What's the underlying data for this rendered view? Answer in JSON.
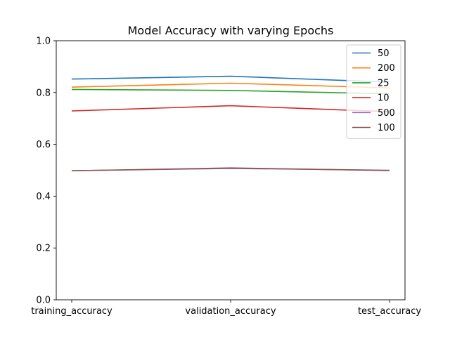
{
  "chart_data": {
    "type": "line",
    "title": "Model Accuracy with varying Epochs",
    "xlabel": "",
    "ylabel": "",
    "categories": [
      "training_accuracy",
      "validation_accuracy",
      "test_accuracy"
    ],
    "ylim": [
      0.0,
      1.0
    ],
    "yticks": [
      "0.0",
      "0.2",
      "0.4",
      "0.6",
      "0.8",
      "1.0"
    ],
    "grid": false,
    "legend_position": "top-right",
    "series": [
      {
        "name": "50",
        "color": "#1f77b4",
        "values": [
          0.852,
          0.863,
          0.84
        ]
      },
      {
        "name": "200",
        "color": "#ff7f0e",
        "values": [
          0.821,
          0.836,
          0.818
        ]
      },
      {
        "name": "25",
        "color": "#2ca02c",
        "values": [
          0.812,
          0.808,
          0.795
        ]
      },
      {
        "name": "10",
        "color": "#d62728",
        "values": [
          0.729,
          0.749,
          0.726
        ]
      },
      {
        "name": "500",
        "color": "#9467bd",
        "values": [
          0.498,
          0.507,
          0.5
        ]
      },
      {
        "name": "100",
        "color": "#8c564b",
        "values": [
          0.498,
          0.509,
          0.499
        ]
      }
    ]
  }
}
